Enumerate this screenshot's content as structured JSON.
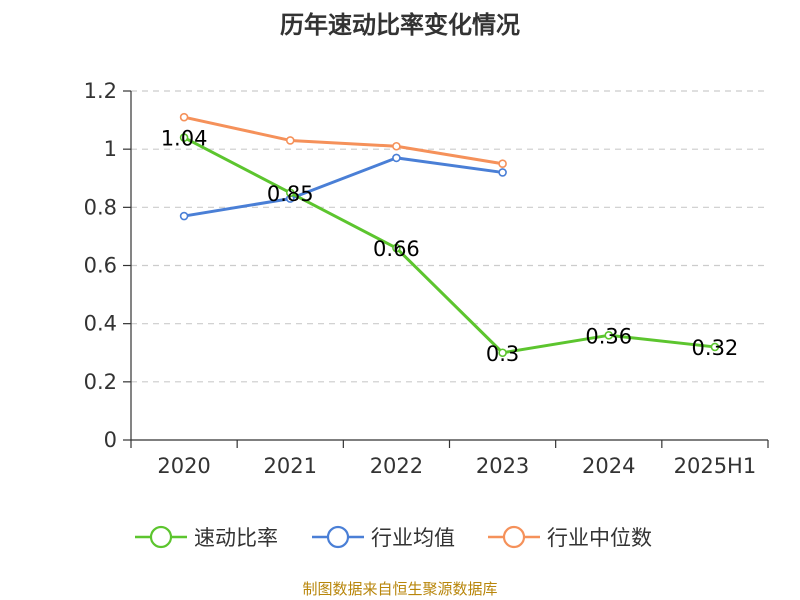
{
  "chart_data": {
    "type": "line",
    "title": "历年速动比率变化情况",
    "categories": [
      "2020",
      "2021",
      "2022",
      "2023",
      "2024",
      "2025H1"
    ],
    "ylim": [
      0,
      1.2
    ],
    "yticks": [
      "0",
      "0.2",
      "0.4",
      "0.6",
      "0.8",
      "1",
      "1.2"
    ],
    "grid": true,
    "legend_position": "bottom",
    "series": [
      {
        "name": "速动比率",
        "color": "#5cc52e",
        "values": [
          1.04,
          0.85,
          0.66,
          0.3,
          0.36,
          0.32
        ],
        "labels": [
          "1.04",
          "0.85",
          "0.66",
          "0.3",
          "0.36",
          "0.32"
        ]
      },
      {
        "name": "行业均值",
        "color": "#4a7fd6",
        "values": [
          0.77,
          0.83,
          0.97,
          0.92,
          null,
          null
        ]
      },
      {
        "name": "行业中位数",
        "color": "#f5915a",
        "values": [
          1.11,
          1.03,
          1.01,
          0.95,
          null,
          null
        ]
      }
    ]
  },
  "source_text": "制图数据来自恒生聚源数据库"
}
